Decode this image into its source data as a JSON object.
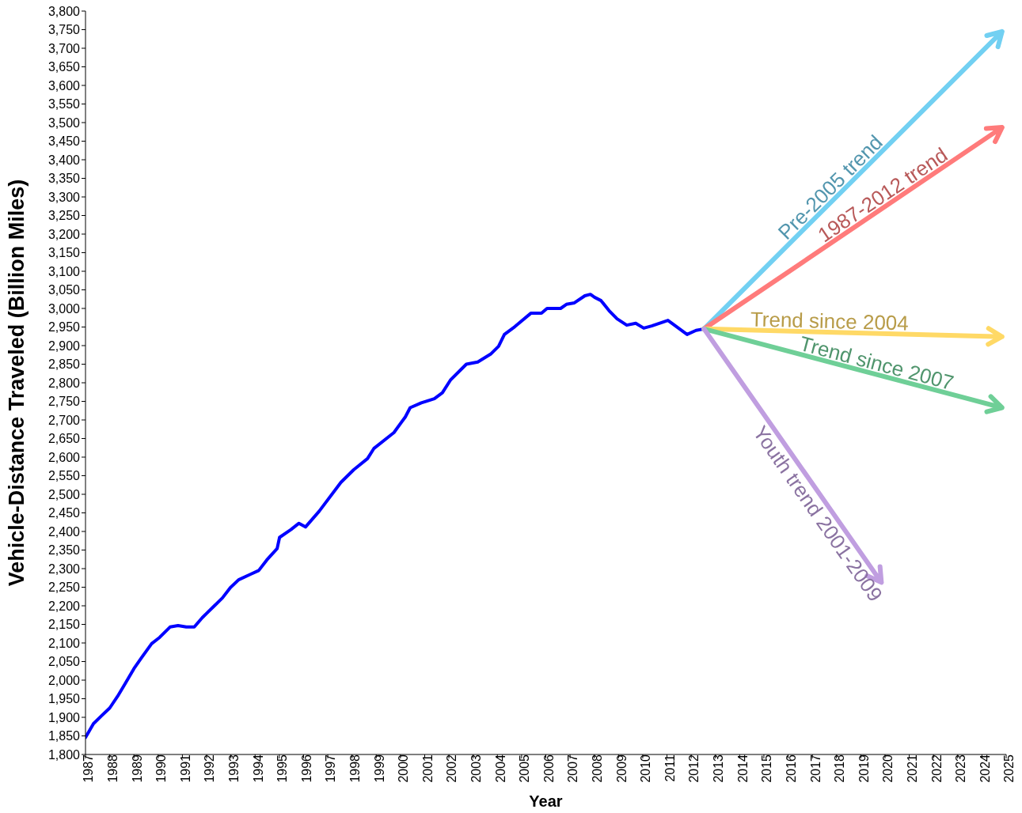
{
  "chart_data": {
    "type": "line",
    "xlabel": "Year",
    "ylabel": "Vehicle-Distance Traveled (Billion Miles)",
    "xlim": [
      1987,
      2025
    ],
    "xticks": [
      1987,
      1988,
      1989,
      1990,
      1991,
      1992,
      1993,
      1994,
      1995,
      1996,
      1997,
      1998,
      1999,
      2000,
      2001,
      2002,
      2003,
      2004,
      2005,
      2006,
      2007,
      2008,
      2009,
      2010,
      2011,
      2012,
      2013,
      2014,
      2015,
      2016,
      2017,
      2018,
      2019,
      2020,
      2021,
      2022,
      2023,
      2024,
      2025
    ],
    "ylim": [
      1800,
      3800
    ],
    "yticks": [
      {
        "value": 1800,
        "label": "1,800"
      },
      {
        "value": 1850,
        "label": "1,850"
      },
      {
        "value": 1900,
        "label": "1,900"
      },
      {
        "value": 1950,
        "label": "1,950"
      },
      {
        "value": 2000,
        "label": "2,000"
      },
      {
        "value": 2050,
        "label": "2,050"
      },
      {
        "value": 2100,
        "label": "2,100"
      },
      {
        "value": 2150,
        "label": "2,150"
      },
      {
        "value": 2200,
        "label": "2,200"
      },
      {
        "value": 2250,
        "label": "2,250"
      },
      {
        "value": 2300,
        "label": "2,300"
      },
      {
        "value": 2350,
        "label": "2,350"
      },
      {
        "value": 2400,
        "label": "2,400"
      },
      {
        "value": 2450,
        "label": "2,450"
      },
      {
        "value": 2500,
        "label": "2,500"
      },
      {
        "value": 2550,
        "label": "2,550"
      },
      {
        "value": 2600,
        "label": "2,600"
      },
      {
        "value": 2650,
        "label": "2,650"
      },
      {
        "value": 2700,
        "label": "2,700"
      },
      {
        "value": 2750,
        "label": "2,750"
      },
      {
        "value": 2800,
        "label": "2,800"
      },
      {
        "value": 2850,
        "label": "2,850"
      },
      {
        "value": 2900,
        "label": "2,900"
      },
      {
        "value": 2950,
        "label": "2,950"
      },
      {
        "value": 3000,
        "label": "3,000"
      },
      {
        "value": 3050,
        "label": "3,050"
      },
      {
        "value": 3100,
        "label": "3,100"
      },
      {
        "value": 3150,
        "label": "3,150"
      },
      {
        "value": 3200,
        "label": "3,200"
      },
      {
        "value": 3250,
        "label": "3,250"
      },
      {
        "value": 3300,
        "label": "3,300"
      },
      {
        "value": 3350,
        "label": "3,350"
      },
      {
        "value": 3400,
        "label": "3,400"
      },
      {
        "value": 3450,
        "label": "3,450"
      },
      {
        "value": 3500,
        "label": "3,500"
      },
      {
        "value": 3550,
        "label": "3,550"
      },
      {
        "value": 3600,
        "label": "3,600"
      },
      {
        "value": 3650,
        "label": "3,650"
      },
      {
        "value": 3700,
        "label": "3,700"
      },
      {
        "value": 3750,
        "label": "3,750"
      },
      {
        "value": 3800,
        "label": "3,800"
      }
    ],
    "marker": "none",
    "series": [
      {
        "color": "#0000ff",
        "x": [
          1987.0,
          1987.33,
          1987.66,
          1988.0,
          1988.33,
          1988.66,
          1989.0,
          1989.33,
          1989.73,
          1990.06,
          1990.49,
          1990.82,
          1991.16,
          1991.49,
          1991.82,
          1991.99,
          1992.32,
          1992.65,
          1992.98,
          1993.32,
          1993.82,
          1994.15,
          1994.48,
          1994.91,
          1995.01,
          1995.48,
          1995.81,
          1996.08,
          1996.64,
          1997.54,
          1998.07,
          1998.64,
          1998.9,
          1999.73,
          2000.2,
          2000.4,
          2000.86,
          2001.4,
          2001.73,
          2002.06,
          2002.72,
          2003.19,
          2003.72,
          2004.05,
          2004.29,
          2004.72,
          2005.38,
          2005.82,
          2006.05,
          2006.61,
          2006.85,
          2007.18,
          2007.61,
          2007.84,
          2008.01,
          2008.28,
          2008.61,
          2008.94,
          2009.34,
          2009.71,
          2010.04,
          2010.37,
          2011.04,
          2011.83,
          2012.2,
          2012.53
        ],
        "values": [
          1846,
          1883,
          1904,
          1925,
          1957,
          1993,
          2031,
          2062,
          2098,
          2115,
          2143,
          2147,
          2143,
          2143,
          2168,
          2179,
          2200,
          2221,
          2249,
          2270,
          2285,
          2295,
          2323,
          2354,
          2384,
          2405,
          2422,
          2412,
          2454,
          2532,
          2566,
          2596,
          2623,
          2666,
          2708,
          2733,
          2746,
          2757,
          2773,
          2807,
          2850,
          2856,
          2877,
          2898,
          2930,
          2951,
          2987,
          2987,
          3000,
          3000,
          3011,
          3015,
          3034,
          3038,
          3030,
          3021,
          2994,
          2972,
          2955,
          2960,
          2947,
          2953,
          2968,
          2930,
          2941,
          2945
        ]
      },
      {
        "type": "line",
        "name": "Pre-2005 trend",
        "color": "#72d0f2",
        "x": [
          2012.53,
          2024.83
        ],
        "values": [
          2945,
          3745
        ]
      },
      {
        "type": "line",
        "name": "1987-2012 trend",
        "color": "#ff7b7b",
        "x": [
          2012.53,
          2024.83
        ],
        "values": [
          2945,
          3487
        ]
      },
      {
        "type": "line",
        "name": "Trend since 2004",
        "color": "#ffd966",
        "x": [
          2012.53,
          2024.83
        ],
        "values": [
          2945,
          2924
        ]
      },
      {
        "type": "line",
        "name": "Trend since 2007",
        "color": "#6fcf97",
        "x": [
          2012.53,
          2024.83
        ],
        "values": [
          2945,
          2733
        ]
      },
      {
        "type": "line",
        "name": "Youth trend 2001-2009",
        "color": "#c09ee0",
        "x": [
          2012.53,
          2019.85
        ],
        "values": [
          2945,
          2263
        ]
      }
    ]
  }
}
